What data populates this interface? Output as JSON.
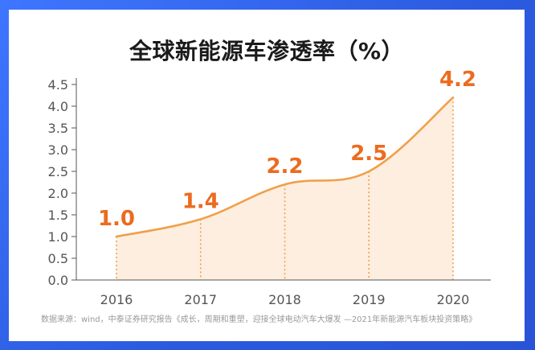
{
  "chart_data": {
    "type": "area",
    "title": "全球新能源车渗透率（%）",
    "categories": [
      "2016",
      "2017",
      "2018",
      "2019",
      "2020"
    ],
    "values": [
      1.0,
      1.4,
      2.2,
      2.5,
      4.2
    ],
    "data_labels": [
      "1.0",
      "1.4",
      "2.2",
      "2.5",
      "4.2"
    ],
    "y_ticks": [
      "0.0",
      "0.5",
      "1.0",
      "1.5",
      "2.0",
      "2.5",
      "3.0",
      "3.5",
      "4.0",
      "4.5"
    ],
    "ylim": [
      0,
      4.5
    ],
    "xlabel": "",
    "ylabel": "",
    "grid": false,
    "colors": {
      "line": "#f0a04b",
      "fill": "#fdeee0",
      "data_label": "#ec6b1f",
      "axis_text": "#555555",
      "frame": "#2f63e6"
    }
  },
  "source": "数据来源：wind，中泰证券研究报告《成长，周期和重塑，迎接全球电动汽车大爆发 —2021年新能源汽车板块投资策略》"
}
